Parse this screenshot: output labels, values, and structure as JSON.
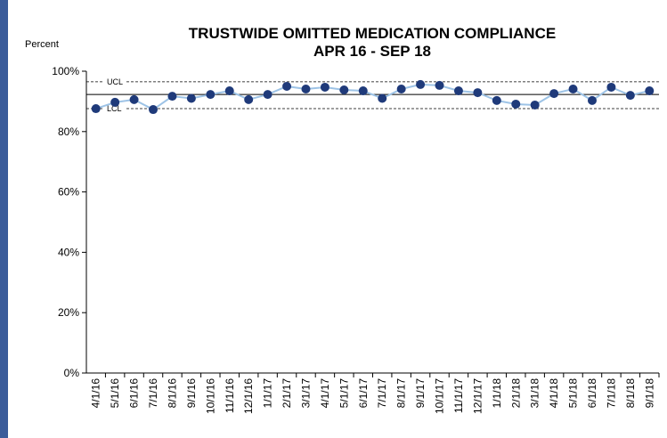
{
  "chart_data": {
    "type": "line",
    "title": [
      "TRUSTWIDE OMITTED MEDICATION COMPLIANCE",
      "APR 16 - SEP 18"
    ],
    "y_label": "Percent",
    "categories": [
      "4/1/16",
      "5/1/16",
      "6/1/16",
      "7/1/16",
      "8/1/16",
      "9/1/16",
      "10/1/16",
      "11/1/16",
      "12/1/16",
      "1/1/17",
      "2/1/17",
      "3/1/17",
      "4/1/17",
      "5/1/17",
      "6/1/17",
      "7/1/17",
      "8/1/17",
      "9/1/17",
      "10/1/17",
      "11/1/17",
      "12/1/17",
      "1/1/18",
      "2/1/18",
      "3/1/18",
      "4/1/18",
      "5/1/18",
      "6/1/18",
      "7/1/18",
      "8/1/18",
      "9/1/18"
    ],
    "series": [
      {
        "color": "#9dc3e6",
        "marker_color": "#1f3a7a",
        "values": [
          87.6,
          89.7,
          90.6,
          87.3,
          91.7,
          91.0,
          92.3,
          93.5,
          90.6,
          92.3,
          95.0,
          94.1,
          94.7,
          93.8,
          93.5,
          91.0,
          94.1,
          95.6,
          95.3,
          93.5,
          92.9,
          90.3,
          89.1,
          88.8,
          92.6,
          94.1,
          90.3,
          94.7,
          92.0,
          93.5
        ]
      }
    ],
    "reference_lines": [
      {
        "name": "UCL",
        "value": 96.5,
        "dashed": true
      },
      {
        "value": 92.3,
        "dashed": false
      },
      {
        "name": "LCL",
        "value": 87.6,
        "dashed": true
      }
    ],
    "ylim": [
      0,
      100
    ],
    "yticks": [
      {
        "value": 0,
        "label": "0%"
      },
      {
        "value": 20,
        "label": "20%"
      },
      {
        "value": 40,
        "label": "40%"
      },
      {
        "value": 60,
        "label": "60%"
      },
      {
        "value": 80,
        "label": "80%"
      },
      {
        "value": 100,
        "label": "100%"
      }
    ]
  }
}
